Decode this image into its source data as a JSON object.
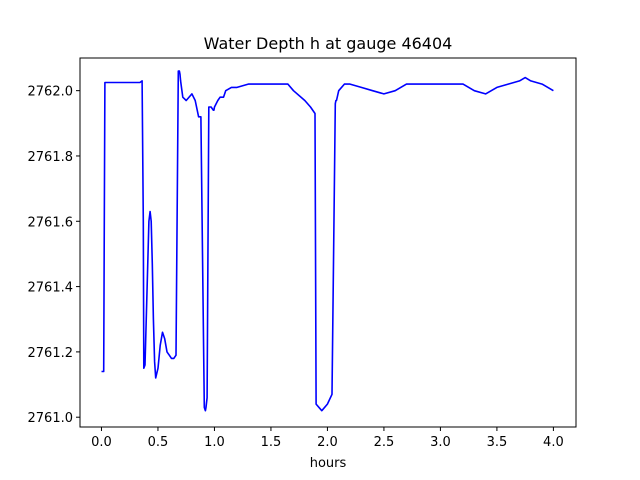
{
  "chart_data": {
    "type": "line",
    "title": "Water Depth h at gauge 46404",
    "xlabel": "hours",
    "ylabel": "",
    "xlim": [
      -0.19,
      4.2
    ],
    "ylim": [
      2760.97,
      2762.1
    ],
    "xticks": [
      0.0,
      0.5,
      1.0,
      1.5,
      2.0,
      2.5,
      3.0,
      3.5,
      4.0
    ],
    "xtick_labels": [
      "0.0",
      "0.5",
      "1.0",
      "1.5",
      "2.0",
      "2.5",
      "3.0",
      "3.5",
      "4.0"
    ],
    "yticks": [
      2761.0,
      2761.2,
      2761.4,
      2761.6,
      2761.8,
      2762.0
    ],
    "ytick_labels": [
      "2761.0",
      "2761.2",
      "2761.4",
      "2761.6",
      "2761.8",
      "2762.0"
    ],
    "grid": false,
    "series": [
      {
        "color": "#0000ff",
        "x": [
          0.0,
          0.02,
          0.025,
          0.03,
          0.1,
          0.2,
          0.3,
          0.34,
          0.36,
          0.37,
          0.375,
          0.385,
          0.4,
          0.42,
          0.43,
          0.44,
          0.45,
          0.46,
          0.47,
          0.48,
          0.5,
          0.52,
          0.54,
          0.56,
          0.58,
          0.6,
          0.62,
          0.64,
          0.66,
          0.68,
          0.69,
          0.695,
          0.7,
          0.72,
          0.75,
          0.8,
          0.83,
          0.86,
          0.88,
          0.91,
          0.92,
          0.925,
          0.935,
          0.95,
          0.97,
          0.99,
          0.995,
          1.0,
          1.03,
          1.05,
          1.08,
          1.1,
          1.15,
          1.2,
          1.3,
          1.4,
          1.5,
          1.6,
          1.65,
          1.7,
          1.8,
          1.85,
          1.89,
          1.9,
          1.95,
          2.0,
          2.04,
          2.07,
          2.075,
          2.08,
          2.1,
          2.15,
          2.2,
          2.3,
          2.4,
          2.5,
          2.6,
          2.7,
          2.8,
          2.9,
          3.0,
          3.1,
          3.2,
          3.3,
          3.4,
          3.5,
          3.6,
          3.7,
          3.75,
          3.8,
          3.9,
          4.0
        ],
        "y": [
          2761.14,
          2761.14,
          2761.6,
          2762.025,
          2762.025,
          2762.025,
          2762.025,
          2762.025,
          2762.03,
          2761.6,
          2761.15,
          2761.16,
          2761.35,
          2761.6,
          2761.63,
          2761.6,
          2761.47,
          2761.3,
          2761.17,
          2761.12,
          2761.15,
          2761.22,
          2761.26,
          2761.24,
          2761.2,
          2761.19,
          2761.18,
          2761.18,
          2761.19,
          2762.06,
          2762.06,
          2762.05,
          2762.03,
          2761.98,
          2761.97,
          2761.99,
          2761.97,
          2761.92,
          2761.92,
          2761.03,
          2761.02,
          2761.03,
          2761.06,
          2761.95,
          2761.95,
          2761.94,
          2761.94,
          2761.95,
          2761.97,
          2761.98,
          2761.98,
          2762.0,
          2762.01,
          2762.01,
          2762.02,
          2762.02,
          2762.02,
          2762.02,
          2762.02,
          2762.0,
          2761.97,
          2761.95,
          2761.93,
          2761.04,
          2761.02,
          2761.04,
          2761.07,
          2761.96,
          2761.97,
          2761.97,
          2762.0,
          2762.02,
          2762.02,
          2762.01,
          2762.0,
          2761.99,
          2762.0,
          2762.02,
          2762.02,
          2762.02,
          2762.02,
          2762.02,
          2762.02,
          2762.0,
          2761.99,
          2762.01,
          2762.02,
          2762.03,
          2762.04,
          2762.03,
          2762.02,
          2762.0
        ]
      }
    ]
  }
}
